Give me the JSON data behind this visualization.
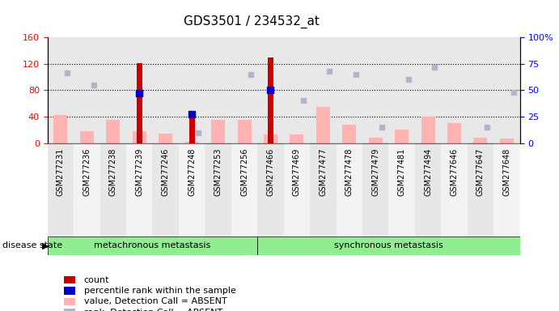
{
  "title": "GDS3501 / 234532_at",
  "samples": [
    "GSM277231",
    "GSM277236",
    "GSM277238",
    "GSM277239",
    "GSM277246",
    "GSM277248",
    "GSM277253",
    "GSM277256",
    "GSM277466",
    "GSM277469",
    "GSM277477",
    "GSM277478",
    "GSM277479",
    "GSM277481",
    "GSM277494",
    "GSM277646",
    "GSM277647",
    "GSM277648"
  ],
  "group1_label": "metachronous metastasis",
  "group2_label": "synchronous metastasis",
  "group1_count": 8,
  "group2_count": 10,
  "count_values": [
    0,
    0,
    0,
    121,
    0,
    48,
    0,
    0,
    130,
    0,
    0,
    0,
    0,
    0,
    0,
    0,
    0,
    0
  ],
  "percentile_values": [
    0,
    0,
    0,
    76,
    0,
    44,
    0,
    0,
    80,
    0,
    0,
    0,
    0,
    0,
    0,
    0,
    0,
    0
  ],
  "value_absent": [
    42,
    18,
    35,
    18,
    14,
    2,
    35,
    35,
    13,
    13,
    55,
    28,
    8,
    20,
    40,
    30,
    8,
    7
  ],
  "rank_absent": [
    66,
    55,
    0,
    0,
    0,
    10,
    0,
    65,
    0,
    40,
    68,
    65,
    15,
    60,
    72,
    0,
    15,
    48
  ],
  "ylim_left": [
    0,
    160
  ],
  "ylim_right": [
    0,
    100
  ],
  "left_ticks": [
    0,
    40,
    80,
    120,
    160
  ],
  "right_ticks": [
    0,
    25,
    50,
    75,
    100
  ],
  "right_tick_labels": [
    "0",
    "25",
    "50",
    "75",
    "100%"
  ],
  "color_count": "#cc0000",
  "color_percentile": "#0000cc",
  "color_value_absent": "#ffb3b3",
  "color_rank_absent": "#b3b3cc",
  "bg_plot": "#e8e8e8",
  "bg_group": "#90ee90",
  "legend_items": [
    {
      "color": "#cc0000",
      "label": "count"
    },
    {
      "color": "#0000cc",
      "label": "percentile rank within the sample"
    },
    {
      "color": "#ffb3b3",
      "label": "value, Detection Call = ABSENT"
    },
    {
      "color": "#b3b3cc",
      "label": "rank, Detection Call = ABSENT"
    }
  ]
}
